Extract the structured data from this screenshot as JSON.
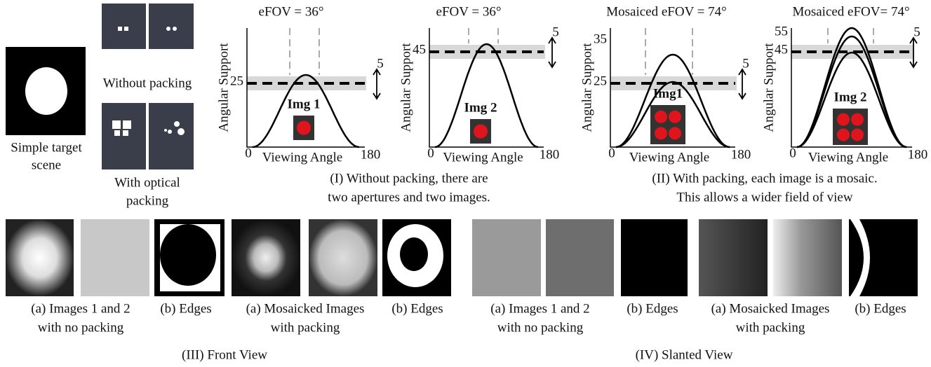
{
  "target": {
    "caption": [
      "Simple target",
      "scene"
    ]
  },
  "photos": {
    "without": "Without packing",
    "with": [
      "With optical",
      "packing"
    ]
  },
  "plots": [
    {
      "title": "eFOV = 36°",
      "ylabel": "Angular Support",
      "xlabel": "Viewing Angle",
      "xmin": "0",
      "xmax": "180",
      "yticks": [
        "25"
      ],
      "delta": "5",
      "inset": "Img 1"
    },
    {
      "title": "eFOV = 36°",
      "ylabel": "Angular Support",
      "xlabel": "Viewing Angle",
      "xmin": "0",
      "xmax": "180",
      "yticks": [
        "45"
      ],
      "delta": "5",
      "inset": "Img 2"
    },
    {
      "title": "Mosaiced eFOV = 74°",
      "ylabel": "Angular Support",
      "xlabel": "Viewing Angle",
      "xmin": "0",
      "xmax": "180",
      "yticks": [
        "35",
        "25"
      ],
      "delta": "5",
      "inset": "Img1"
    },
    {
      "title": "Mosaiced eFOV= 74°",
      "ylabel": "Angular Support",
      "xlabel": "Viewing Angle",
      "xmin": "0",
      "xmax": "180",
      "yticks": [
        "55",
        "45"
      ],
      "delta": "5",
      "inset": "Img 2"
    }
  ],
  "groups": [
    [
      "(I) Without packing, there are",
      "two apertures and two images."
    ],
    [
      "(II) With packing, each image is a mosaic.",
      "This allows a wider field of view"
    ]
  ],
  "views": [
    {
      "section": "(III) Front View",
      "captions": [
        [
          "(a) Images 1 and 2",
          "with no packing"
        ],
        [
          "(b) Edges"
        ],
        [
          "(a) Mosaicked Images",
          "with packing"
        ],
        [
          "(b) Edges"
        ]
      ]
    },
    {
      "section": "(IV) Slanted View",
      "captions": [
        [
          "(a) Images 1 and 2",
          "with no packing"
        ],
        [
          "(b) Edges"
        ],
        [
          "(a) Mosaicked Images",
          "with packing"
        ],
        [
          "(b) Edges"
        ]
      ]
    }
  ]
}
